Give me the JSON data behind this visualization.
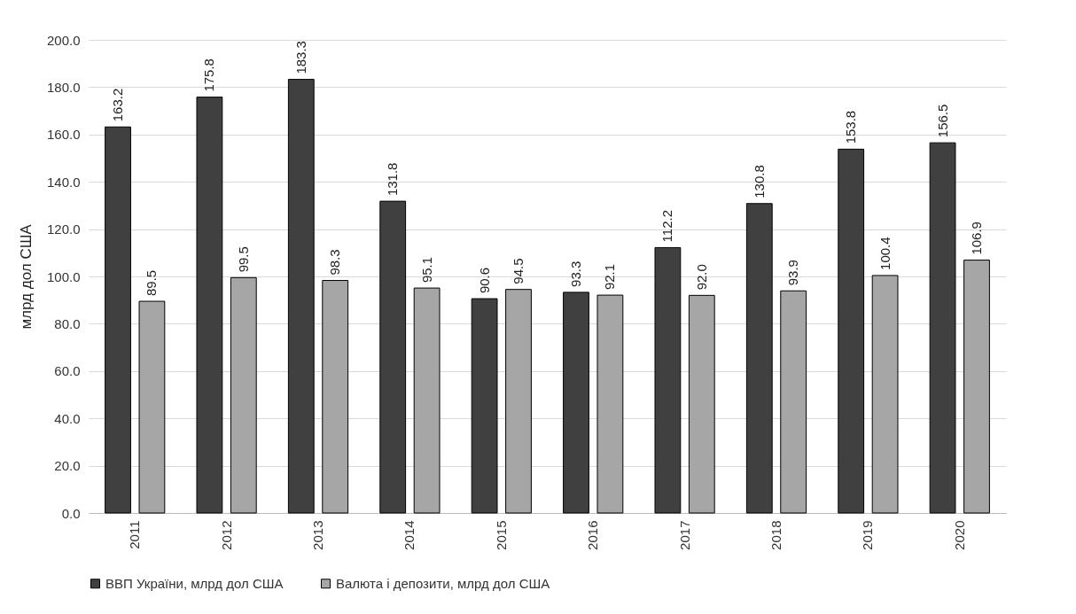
{
  "chart_data": {
    "type": "bar",
    "ylabel": "млрд дол США",
    "categories": [
      "2011",
      "2012",
      "2013",
      "2014",
      "2015",
      "2016",
      "2017",
      "2018",
      "2019",
      "2020"
    ],
    "series": [
      {
        "name": "ВВП України, млрд дол США",
        "color": "#404040",
        "values": [
          163.2,
          175.8,
          183.3,
          131.8,
          90.6,
          93.3,
          112.2,
          130.8,
          153.8,
          156.5
        ],
        "value_labels": [
          "163.2",
          "175.8",
          "183.3",
          "131.8",
          "90.6",
          "93.3",
          "112.2",
          "130.8",
          "153.8",
          "156.5"
        ]
      },
      {
        "name": "Валюта і депозити, млрд дол США",
        "color": "#a6a6a6",
        "values": [
          89.5,
          99.5,
          98.3,
          95.1,
          94.5,
          92.1,
          92.0,
          93.9,
          100.4,
          106.9
        ],
        "value_labels": [
          "89.5",
          "99.5",
          "98.3",
          "95.1",
          "94.5",
          "92.1",
          "92.0",
          "93.9",
          "100.4",
          "106.9"
        ]
      }
    ],
    "ylim": [
      0,
      200
    ],
    "yticks": [
      {
        "value": 0,
        "label": "0.0"
      },
      {
        "value": 20,
        "label": "20.0"
      },
      {
        "value": 40,
        "label": "40.0"
      },
      {
        "value": 60,
        "label": "60.0"
      },
      {
        "value": 80,
        "label": "80.0"
      },
      {
        "value": 100,
        "label": "100.0"
      },
      {
        "value": 120,
        "label": "120.0"
      },
      {
        "value": 140,
        "label": "140.0"
      },
      {
        "value": 160,
        "label": "160.0"
      },
      {
        "value": 180,
        "label": "180.0"
      },
      {
        "value": 200,
        "label": "200.0"
      }
    ],
    "grid": "y",
    "legend": "bottom"
  }
}
